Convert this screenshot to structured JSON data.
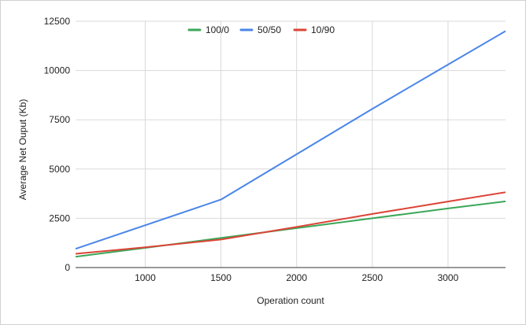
{
  "chart_data": {
    "type": "line",
    "title": "",
    "xlabel": "Operation count",
    "ylabel": "Average Net Ouput (Kb)",
    "xlim": [
      540,
      3380
    ],
    "ylim": [
      0,
      12500
    ],
    "x_ticks": [
      1000,
      1500,
      2000,
      2500,
      3000
    ],
    "y_ticks": [
      0,
      2500,
      5000,
      7500,
      10000,
      12500
    ],
    "x_tick_labels": [
      "1000",
      "1500",
      "2000",
      "2500",
      "3000"
    ],
    "y_tick_labels": [
      "0",
      "2500",
      "5000",
      "7500",
      "10000",
      "12500"
    ],
    "grid": true,
    "legend_position": "top-center",
    "series": [
      {
        "name": "100/0",
        "color": "#3aa757",
        "points": [
          [
            540,
            550
          ],
          [
            1000,
            1000
          ],
          [
            1500,
            1500
          ],
          [
            2000,
            2000
          ],
          [
            2500,
            2500
          ],
          [
            3000,
            3000
          ],
          [
            3380,
            3360
          ]
        ]
      },
      {
        "name": "50/50",
        "color": "#4a86e8",
        "points": [
          [
            540,
            950
          ],
          [
            1500,
            3450
          ],
          [
            2000,
            5750
          ],
          [
            2500,
            8050
          ],
          [
            3000,
            10300
          ],
          [
            3380,
            12000
          ]
        ]
      },
      {
        "name": "10/90",
        "color": "#db4437",
        "points": [
          [
            540,
            700
          ],
          [
            1000,
            1030
          ],
          [
            1500,
            1420
          ],
          [
            2000,
            2060
          ],
          [
            2500,
            2720
          ],
          [
            3000,
            3350
          ],
          [
            3380,
            3820
          ]
        ]
      }
    ]
  }
}
